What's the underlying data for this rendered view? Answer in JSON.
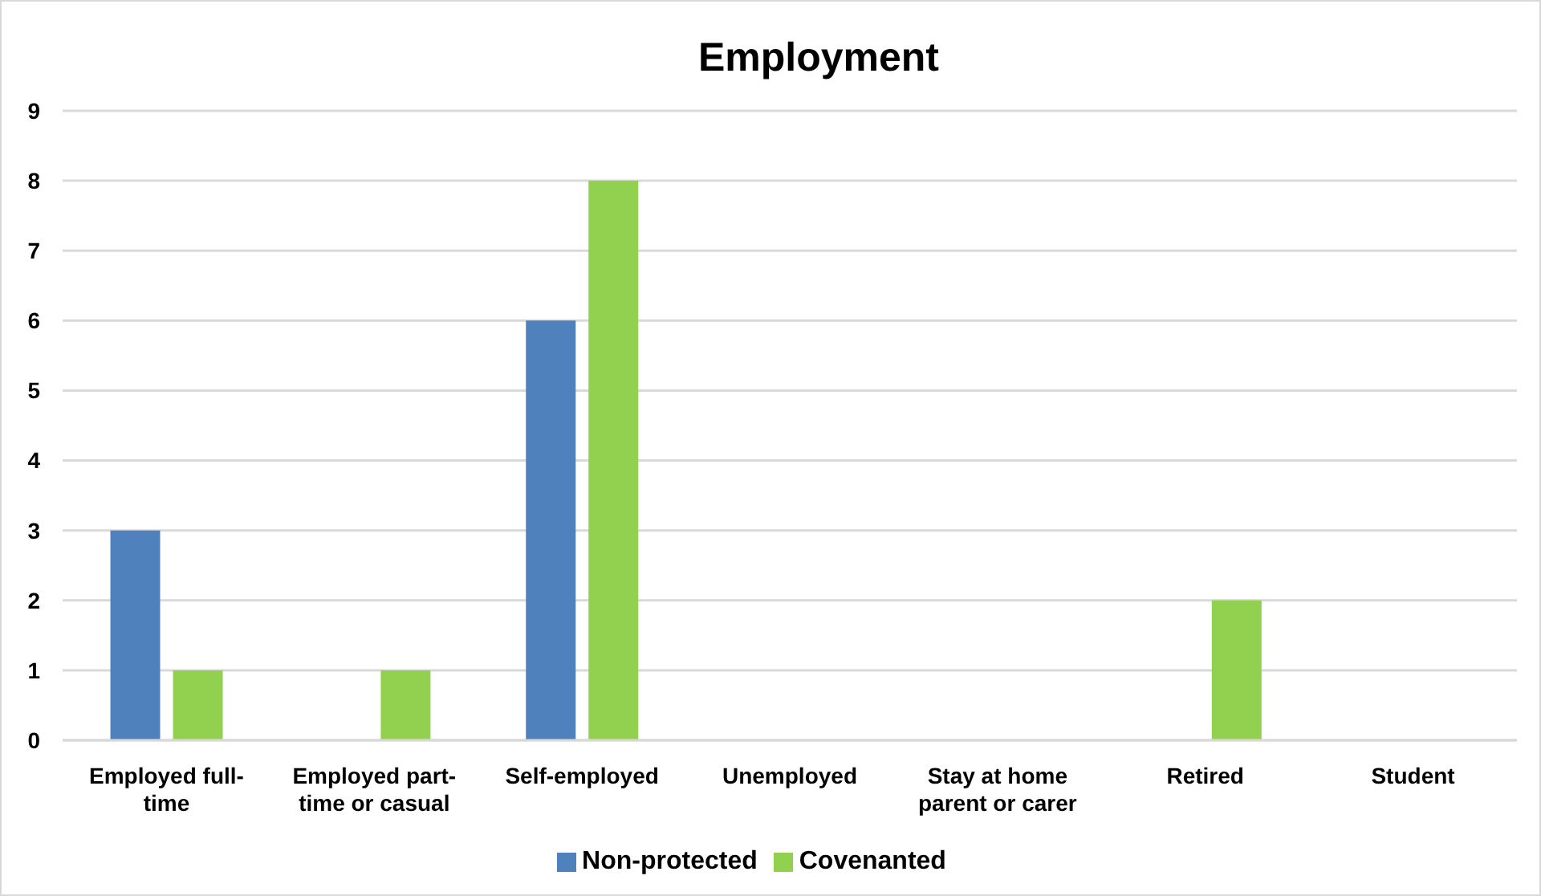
{
  "chart_data": {
    "type": "bar",
    "title": "Employment",
    "categories": [
      "Employed full-time",
      "Employed part-time or casual",
      "Self-employed",
      "Unemployed",
      "Stay at home parent or carer",
      "Retired",
      "Student"
    ],
    "series": [
      {
        "name": "Non-protected",
        "color": "#4f81bd",
        "values": [
          3,
          0,
          6,
          0,
          0,
          0,
          0
        ]
      },
      {
        "name": "Covenanted",
        "color": "#92d050",
        "values": [
          1,
          1,
          8,
          0,
          0,
          2,
          0
        ]
      }
    ],
    "ylim": [
      0,
      9
    ],
    "yticks": [
      0,
      1,
      2,
      3,
      4,
      5,
      6,
      7,
      8,
      9
    ],
    "grid": "y",
    "legend": "bottom"
  }
}
